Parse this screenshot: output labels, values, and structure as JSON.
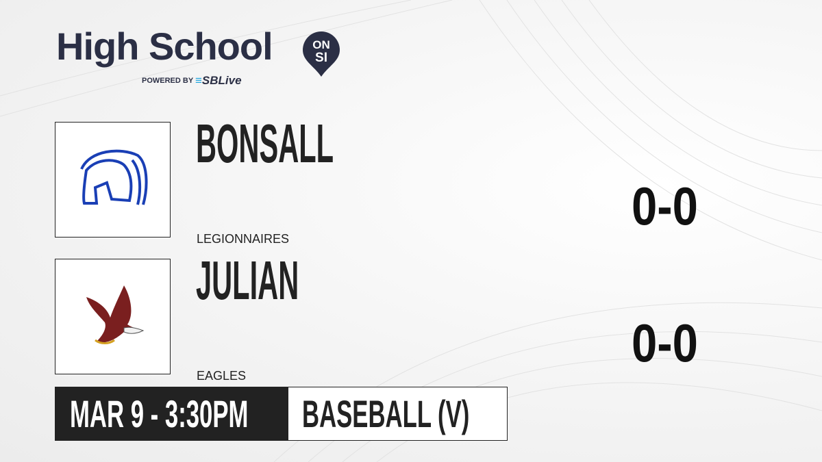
{
  "brand": {
    "title": "High School",
    "badge_top": "ON",
    "badge_bottom": "SI",
    "powered_by": "POWERED BY",
    "partner": "SBLive",
    "colors": {
      "navy": "#2b2f45",
      "partner_blue": "#22a7e0"
    }
  },
  "teams": [
    {
      "name": "BONSALL",
      "mascot": "LEGIONNAIRES",
      "record": "0-0",
      "logo_icon": "spartan-helmet-icon",
      "logo_color": "#1a3fb5"
    },
    {
      "name": "JULIAN",
      "mascot": "EAGLES",
      "record": "0-0",
      "logo_icon": "eagle-icon",
      "logo_color": "#7a1f1f"
    }
  ],
  "game": {
    "datetime": "MAR 9 - 3:30PM",
    "sport": "BASEBALL (V)"
  }
}
